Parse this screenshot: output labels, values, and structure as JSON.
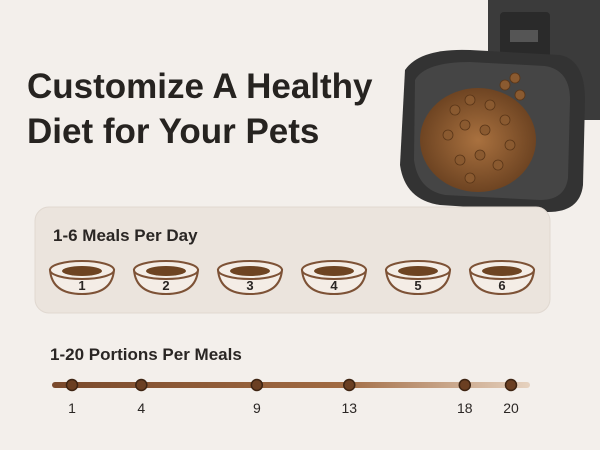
{
  "headline": {
    "lines": [
      "Customize A Healthy",
      "Diet for Your Pets"
    ]
  },
  "meals": {
    "title": "1-6 Meals Per Day",
    "bowls": [
      1,
      2,
      3,
      4,
      5,
      6
    ]
  },
  "portions": {
    "title": "1-20 Portions Per Meals",
    "ticks": [
      1,
      4,
      9,
      13,
      18,
      20
    ]
  }
}
